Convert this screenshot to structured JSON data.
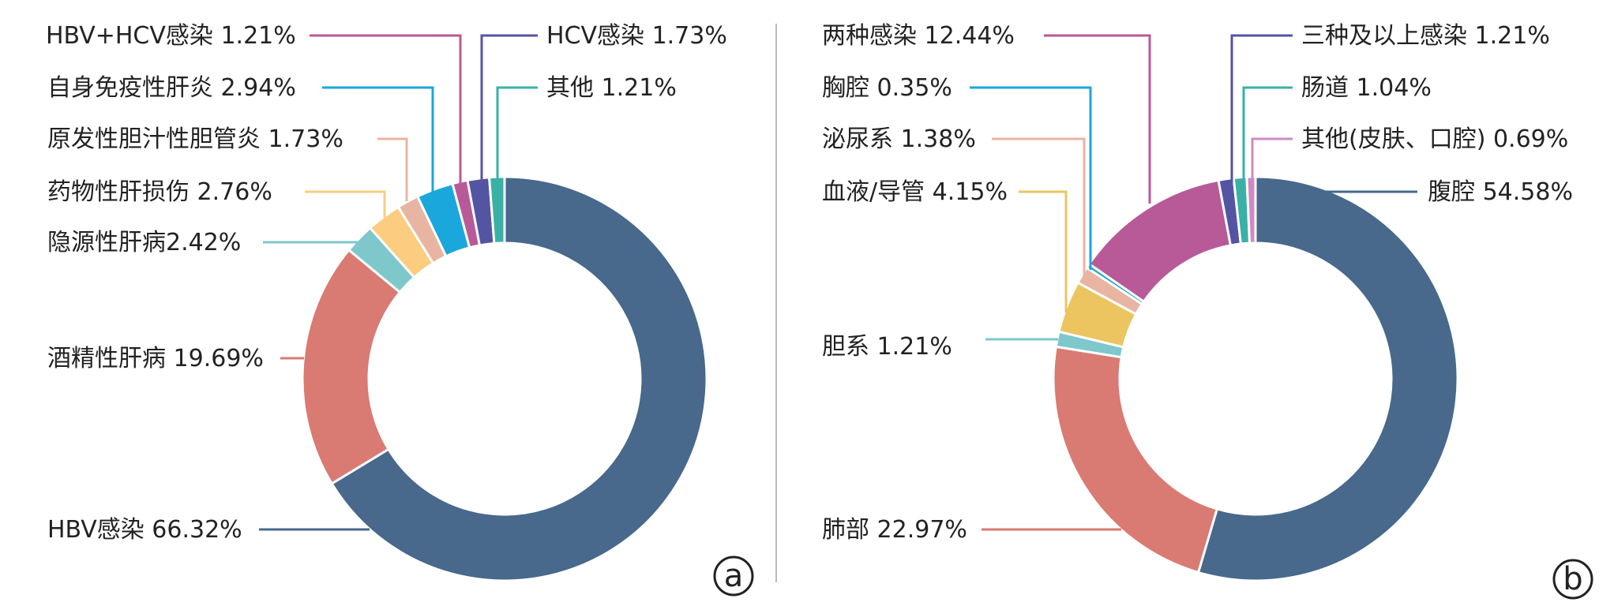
{
  "chart_data": [
    {
      "type": "pie",
      "panel_label": "a",
      "categories": [
        "HBV感染",
        "酒精性肝病",
        "隐源性肝病",
        "药物性肝损伤",
        "原发性胆汁性胆管炎",
        "自身免疫性肝炎",
        "HBV+HCV感染",
        "HCV感染",
        "其他"
      ],
      "values": [
        66.32,
        19.69,
        2.42,
        2.76,
        1.73,
        2.94,
        1.21,
        1.73,
        1.21
      ],
      "labels": [
        "HBV感染 66.32%",
        "酒精性肝病 19.69%",
        "隐源性肝病2.42%",
        "药物性肝损伤  2.76%",
        "原发性胆汁性胆管炎 1.73%",
        "自身免疫性肝炎 2.94%",
        "HBV+HCV感染 1.21%",
        "HCV感染 1.73%",
        "其他 1.21%"
      ],
      "colors": [
        "#48688c",
        "#d97a73",
        "#7ec8cb",
        "#fccd80",
        "#e8b5a2",
        "#1aa7db",
        "#b85a97",
        "#5355a2",
        "#3ab1a6"
      ],
      "direction": "counterclockwise from 12 o'clock"
    },
    {
      "type": "pie",
      "panel_label": "b",
      "categories": [
        "腹腔",
        "肺部",
        "胆系",
        "血液/导管",
        "泌尿系",
        "胸腔",
        "两种感染",
        "三种及以上感染",
        "肠道",
        "其他(皮肤、口腔)"
      ],
      "values": [
        54.58,
        22.97,
        1.21,
        4.15,
        1.38,
        0.35,
        12.44,
        1.21,
        1.04,
        0.69
      ],
      "labels": [
        "腹腔 54.58%",
        "肺部 22.97%",
        "胆系 1.21%",
        "血液/导管 4.15%",
        "泌尿系 1.38%",
        "胸腔 0.35%",
        "两种感染  12.44%",
        "三种及以上感染 1.21%",
        "肠道 1.04%",
        "其他(皮肤、口腔) 0.69%"
      ],
      "colors": [
        "#48688c",
        "#d97a73",
        "#7ec8cb",
        "#ecc560",
        "#e8b5a2",
        "#1aa7db",
        "#b85a97",
        "#5355a2",
        "#3ab1a6",
        "#cf8ac3"
      ],
      "direction": "counterclockwise from 12 o'clock"
    }
  ]
}
